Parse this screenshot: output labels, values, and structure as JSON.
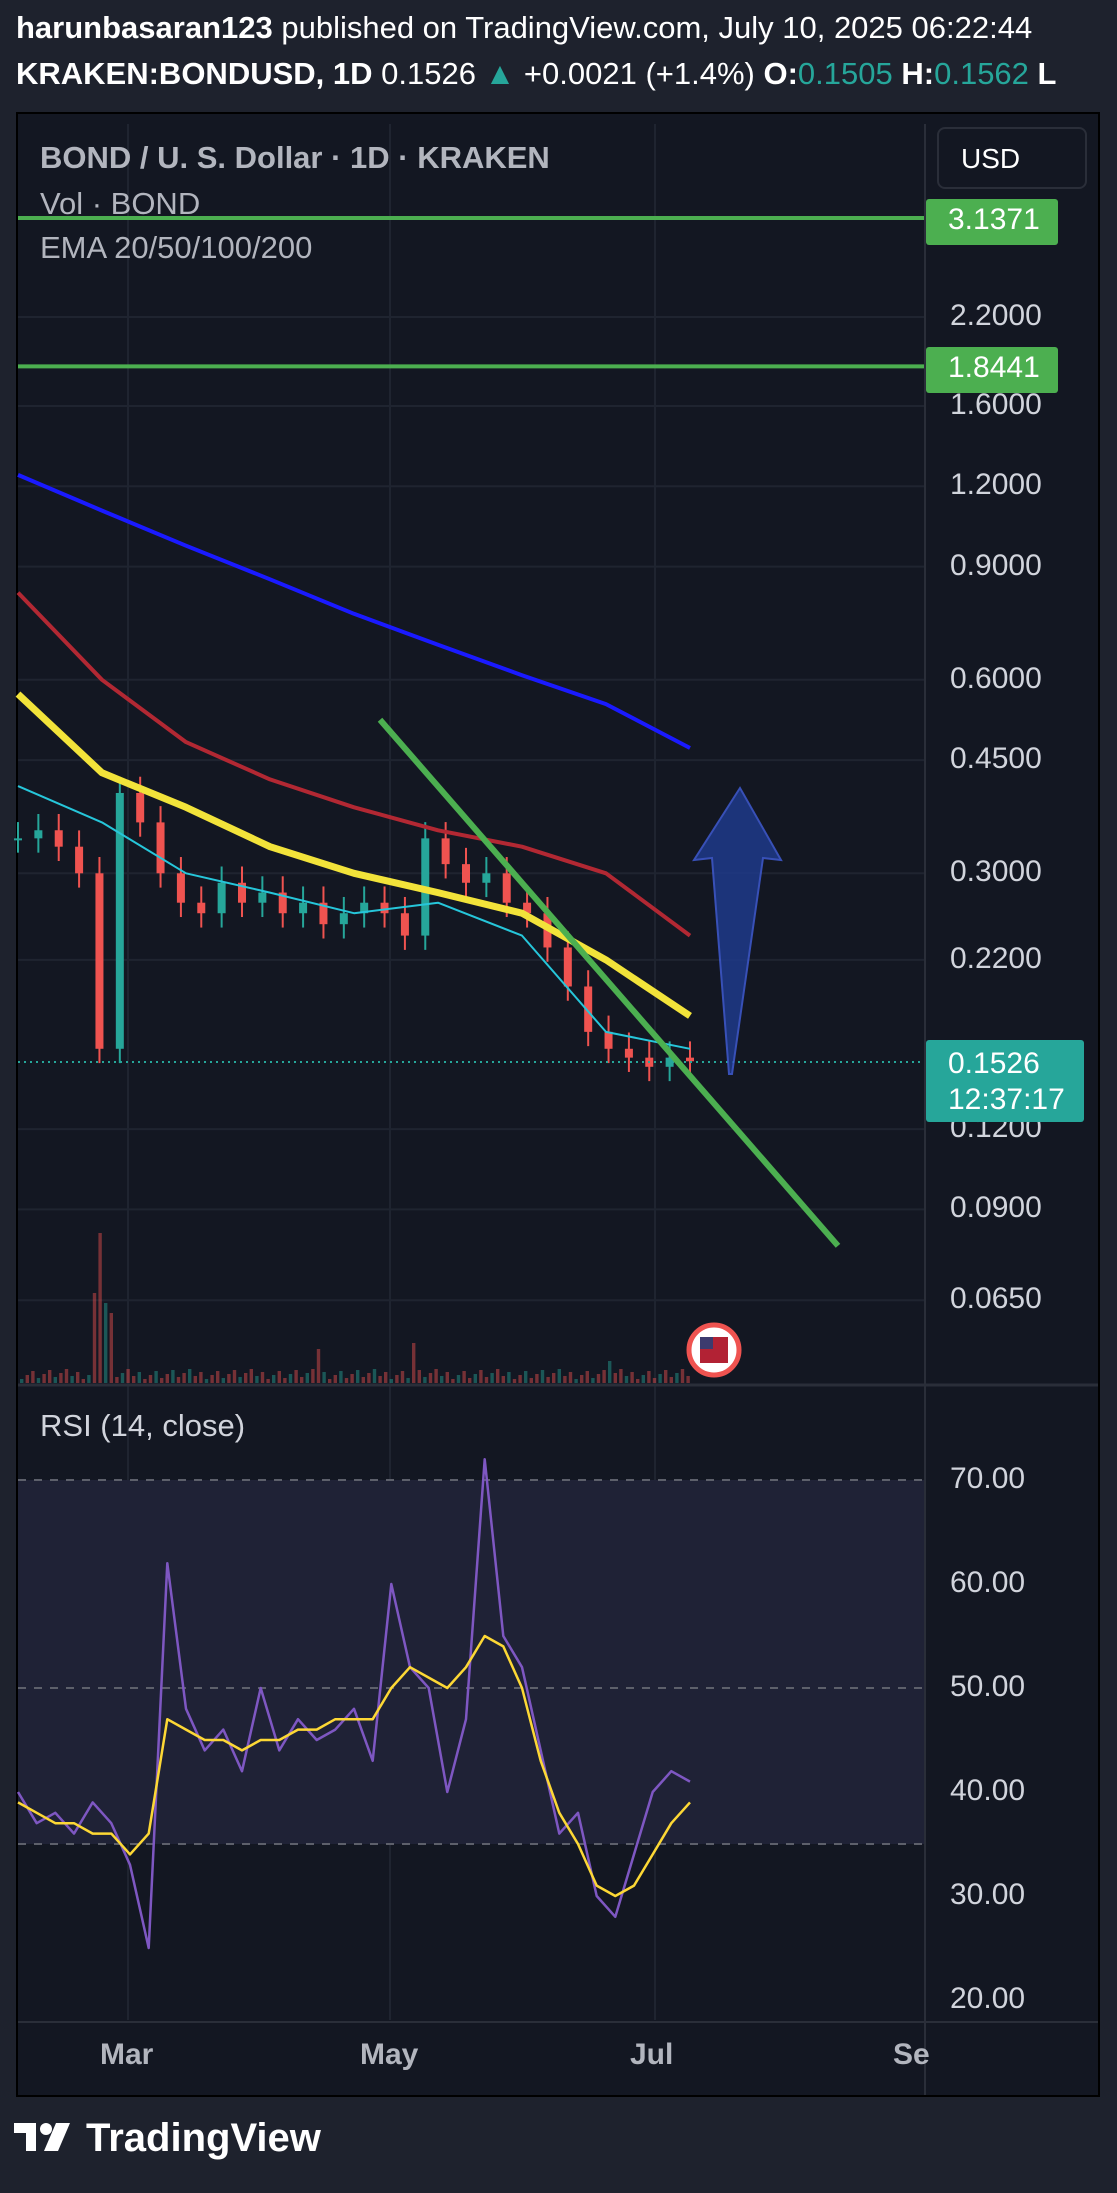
{
  "header": {
    "line1_user": "harunbasaran123",
    "line1_rest": " published on TradingView.com, July 10, 2025 06:22:44",
    "symbol": "KRAKEN:BONDUSD, 1D",
    "price": "0.1526",
    "change": "+0.0021 (+1.4%)",
    "o_label": "O:",
    "o_value": "0.1505",
    "h_label": "H:",
    "h_value": "0.1562",
    "l_label": "L"
  },
  "legend": {
    "title": "BOND / U. S. Dollar · 1D · KRAKEN",
    "vol": "Vol · BOND",
    "ema": "EMA 20/50/100/200"
  },
  "currency_button": "USD",
  "price_tags": {
    "level1": "3.1371",
    "level2": "1.8441",
    "current_price": "0.1526",
    "countdown": "12:37:17"
  },
  "rsi": {
    "label": "RSI (14, close)"
  },
  "footer": {
    "brand": "TradingView"
  },
  "colors": {
    "green_line": "#4caf50",
    "ema200": "#1a1aff",
    "ema100": "#b22833",
    "ema50": "#f2e33a",
    "ema20": "#26c6da",
    "up": "#26a69a",
    "down": "#ef5350",
    "rsi": "#7e57c2",
    "rsi_ma": "#fdd835",
    "arrow": "#1e3a8a"
  },
  "chart_data": [
    {
      "type": "line",
      "scale": "log",
      "x_ticks": [
        "Mar",
        "May",
        "Jul",
        "Se"
      ],
      "y_ticks": [
        "2.2000",
        "1.6000",
        "1.2000",
        "0.9000",
        "0.6000",
        "0.4500",
        "0.3000",
        "0.2200",
        "0.1200",
        "0.0900",
        "0.0650"
      ],
      "ylim": [
        0.055,
        3.6
      ],
      "horizontal_levels": [
        3.1371,
        1.8441
      ],
      "last_price": 0.1526,
      "series": [
        {
          "values": [
            1.25,
            1.1,
            0.97,
            0.86,
            0.76,
            0.68,
            0.61,
            0.55,
            0.47
          ]
        },
        {
          "values": [
            0.82,
            0.6,
            0.48,
            0.42,
            0.38,
            0.35,
            0.33,
            0.3,
            0.24
          ]
        },
        {
          "values": [
            0.57,
            0.43,
            0.38,
            0.33,
            0.3,
            0.28,
            0.26,
            0.22,
            0.18
          ]
        },
        {
          "values": [
            0.41,
            0.36,
            0.3,
            0.28,
            0.26,
            0.27,
            0.24,
            0.17,
            0.16
          ]
        }
      ],
      "close": [
        0.34,
        0.35,
        0.33,
        0.3,
        0.16,
        0.4,
        0.36,
        0.3,
        0.27,
        0.26,
        0.29,
        0.27,
        0.28,
        0.26,
        0.27,
        0.25,
        0.26,
        0.27,
        0.26,
        0.24,
        0.34,
        0.31,
        0.29,
        0.3,
        0.27,
        0.26,
        0.23,
        0.2,
        0.17,
        0.16,
        0.155,
        0.15,
        0.155,
        0.153
      ],
      "trendline": [
        0.52,
        0.079
      ],
      "volume_spike_label": "",
      "xlabel": "",
      "ylabel": ""
    },
    {
      "type": "line",
      "x_ticks": [
        "Mar",
        "May",
        "Jul",
        "Se"
      ],
      "y_ticks": [
        "70.00",
        "60.00",
        "50.00",
        "40.00",
        "30.00",
        "20.00"
      ],
      "ylim": [
        18,
        73
      ],
      "bands": [
        70,
        50,
        35
      ],
      "series": [
        {
          "values": [
            40,
            37,
            38,
            36,
            39,
            37,
            33,
            25,
            62,
            48,
            44,
            46,
            42,
            50,
            44,
            47,
            45,
            46,
            48,
            43,
            60,
            52,
            50,
            40,
            47,
            72,
            55,
            52,
            44,
            36,
            38,
            30,
            28,
            34,
            40,
            42,
            41
          ]
        },
        {
          "values": [
            39,
            38,
            37,
            37,
            36,
            36,
            34,
            36,
            47,
            46,
            45,
            45,
            44,
            45,
            45,
            46,
            46,
            47,
            47,
            47,
            50,
            52,
            51,
            50,
            52,
            55,
            54,
            50,
            43,
            38,
            35,
            31,
            30,
            31,
            34,
            37,
            39
          ]
        }
      ]
    }
  ]
}
